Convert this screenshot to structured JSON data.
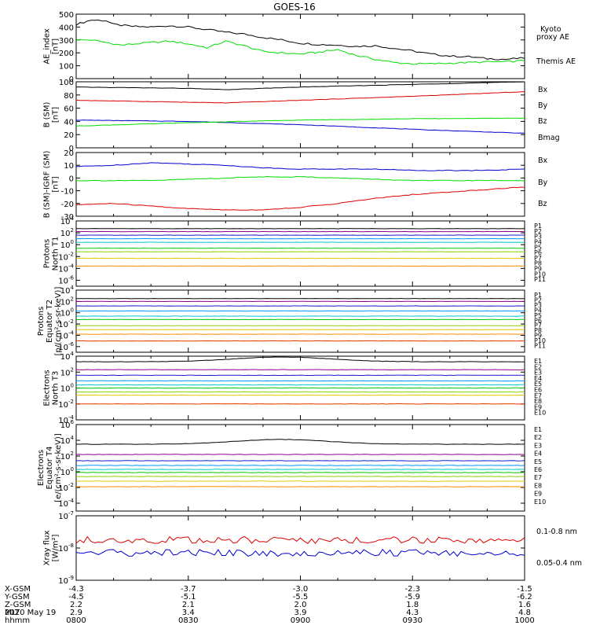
{
  "title": "GOES-16",
  "colors": {
    "black": "#000000",
    "green": "#00dd00",
    "blue": "#0000cc",
    "red": "#dd0000",
    "ch": [
      "#000000",
      "#8b008b",
      "#1a1acd",
      "#0096ff",
      "#00c8c8",
      "#00c800",
      "#8cd200",
      "#e6c800",
      "#ff8c00",
      "#e63200",
      "#c80000"
    ]
  },
  "chart_data": [
    {
      "type": "line",
      "ylabel": "AE_index [nT]",
      "ylim": [
        0,
        500
      ],
      "yticks": [
        "0",
        "100",
        "200",
        "300",
        "400",
        "500"
      ],
      "series": [
        {
          "name": "Themis AE",
          "color": "#000000",
          "x": [
            0,
            4,
            8,
            10,
            15,
            20,
            25,
            30,
            35,
            40,
            45,
            50,
            55,
            60,
            65,
            70,
            75,
            80,
            85,
            90,
            95,
            100,
            105,
            110,
            115,
            120
          ],
          "y": [
            420,
            455,
            450,
            420,
            405,
            400,
            410,
            400,
            380,
            360,
            345,
            320,
            300,
            275,
            265,
            260,
            250,
            255,
            235,
            215,
            190,
            175,
            170,
            155,
            150,
            160
          ]
        },
        {
          "name": "Kyoto proxy AE",
          "color": "#00dd00",
          "x": [
            0,
            4,
            8,
            12,
            16,
            20,
            25,
            30,
            35,
            40,
            45,
            50,
            55,
            60,
            65,
            70,
            75,
            80,
            85,
            90,
            95,
            100,
            105,
            110,
            115,
            120
          ],
          "y": [
            300,
            300,
            280,
            260,
            270,
            280,
            290,
            270,
            240,
            290,
            255,
            210,
            200,
            190,
            205,
            225,
            180,
            150,
            125,
            115,
            115,
            120,
            125,
            130,
            130,
            140
          ]
        }
      ],
      "legend_note": [
        "Kyoto",
        "proxy AE"
      ]
    },
    {
      "type": "line",
      "ylabel": "B (SM) [nT]",
      "ylim": [
        0,
        100
      ],
      "yticks": [
        "0",
        "20",
        "40",
        "60",
        "80",
        "100"
      ],
      "series": [
        {
          "name": "Bx",
          "color": "#0000cc",
          "x": [
            0,
            30,
            60,
            90,
            120
          ],
          "y": [
            42,
            40,
            35,
            28,
            22
          ]
        },
        {
          "name": "By",
          "color": "#00dd00",
          "x": [
            0,
            30,
            60,
            90,
            120
          ],
          "y": [
            33,
            38,
            42,
            44,
            45
          ]
        },
        {
          "name": "Bz",
          "color": "#dd0000",
          "x": [
            0,
            30,
            40,
            60,
            90,
            120
          ],
          "y": [
            72,
            69,
            68,
            72,
            78,
            85
          ]
        },
        {
          "name": "Bmag",
          "color": "#000000",
          "x": [
            0,
            30,
            40,
            60,
            90,
            120
          ],
          "y": [
            92,
            90,
            88,
            92,
            96,
            100
          ]
        }
      ]
    },
    {
      "type": "line",
      "ylabel": "B (SM)-IGRF (SM) [nT]",
      "ylim": [
        -30,
        20
      ],
      "yticks": [
        "-30",
        "-20",
        "-10",
        "0",
        "10",
        "20"
      ],
      "series": [
        {
          "name": "Bx",
          "color": "#0000cc",
          "x": [
            0,
            10,
            20,
            30,
            40,
            50,
            60,
            70,
            80,
            90,
            100,
            110,
            120
          ],
          "y": [
            9,
            10,
            12,
            11,
            10,
            8,
            7,
            7,
            7,
            6,
            6,
            6,
            7
          ]
        },
        {
          "name": "By",
          "color": "#00dd00",
          "x": [
            0,
            20,
            30,
            40,
            50,
            60,
            70,
            80,
            90,
            100,
            110,
            120
          ],
          "y": [
            -2,
            -2,
            -1,
            0,
            1,
            1,
            0,
            -1,
            -2,
            -2,
            -2,
            -2
          ]
        },
        {
          "name": "Bz",
          "color": "#dd0000",
          "x": [
            0,
            10,
            20,
            30,
            40,
            50,
            60,
            70,
            80,
            90,
            100,
            110,
            120
          ],
          "y": [
            -21,
            -20,
            -22,
            -24,
            -25,
            -25,
            -23,
            -20,
            -16,
            -13,
            -11,
            -9,
            -7
          ]
        }
      ]
    },
    {
      "type": "line",
      "log": true,
      "ylabel": [
        "Protons",
        "North T1"
      ],
      "ylim_exp": [
        -7,
        4
      ],
      "tick_exps": [
        -6,
        -4,
        -2,
        0,
        2,
        4
      ],
      "series": [
        {
          "name": "P1",
          "level": 2.7
        },
        {
          "name": "P2",
          "level": 2.2
        },
        {
          "name": "P3",
          "level": 1.6
        },
        {
          "name": "P4",
          "level": 1.0
        },
        {
          "name": "P5",
          "level": 0.4
        },
        {
          "name": "P6",
          "level": -0.6
        },
        {
          "name": "P7",
          "level": -1.2
        },
        {
          "name": "P8",
          "level": -2.3
        },
        {
          "name": "P9",
          "level": -3.6
        },
        {
          "name": "P10",
          "level": null
        },
        {
          "name": "P11",
          "level": null
        }
      ]
    },
    {
      "type": "line",
      "log": true,
      "ylabel": [
        "Protons",
        "Equator T2",
        "[p/(cm²-s-sr-keV)]"
      ],
      "ylim_exp": [
        -7,
        4
      ],
      "tick_exps": [
        -6,
        -4,
        -2,
        0,
        2,
        4
      ],
      "series": [
        {
          "name": "P1",
          "level": 2.5
        },
        {
          "name": "P2",
          "level": 2.0
        },
        {
          "name": "P3",
          "level": 1.2
        },
        {
          "name": "P4",
          "level": 0.3
        },
        {
          "name": "P5",
          "level": -0.6
        },
        {
          "name": "P6",
          "level": -1.2
        },
        {
          "name": "P7",
          "level": -2.3
        },
        {
          "name": "P8",
          "level": -3.0
        },
        {
          "name": "P9",
          "level": -3.8
        },
        {
          "name": "P10",
          "level": -5.0
        },
        {
          "name": "P11",
          "level": null
        }
      ]
    },
    {
      "type": "line",
      "log": true,
      "ylabel": [
        "Electrons",
        "North T3"
      ],
      "ylim_exp": [
        -4,
        4
      ],
      "tick_exps": [
        -4,
        -2,
        0,
        2,
        4
      ],
      "series": [
        {
          "name": "E1",
          "level": 3.3
        },
        {
          "name": "E2",
          "level": 2.3
        },
        {
          "name": "E3",
          "level": 1.6
        },
        {
          "name": "E4",
          "level": 0.9
        },
        {
          "name": "E5",
          "level": 0.4
        },
        {
          "name": "E6",
          "level": 0.0
        },
        {
          "name": "E7",
          "level": -0.5
        },
        {
          "name": "E8",
          "level": -0.9
        },
        {
          "name": "E9",
          "level": null
        },
        {
          "name": "E10",
          "level": -2.0
        }
      ]
    },
    {
      "type": "line",
      "log": true,
      "ylabel": [
        "Electrons",
        "Equator T4",
        "[e/(cm²-s-sr-keV)]"
      ],
      "ylim_exp": [
        -5,
        6
      ],
      "tick_exps": [
        -4,
        -2,
        0,
        2,
        4,
        6
      ],
      "series": [
        {
          "name": "E1",
          "level": 3.5
        },
        {
          "name": "E2",
          "level": 2.2
        },
        {
          "name": "E3",
          "level": 1.4
        },
        {
          "name": "E4",
          "level": 0.8
        },
        {
          "name": "E5",
          "level": 0.3
        },
        {
          "name": "E6",
          "level": -0.1
        },
        {
          "name": "E7",
          "level": -0.6
        },
        {
          "name": "E8",
          "level": -1.2
        },
        {
          "name": "E9",
          "level": -1.9
        },
        {
          "name": "E10",
          "level": null
        }
      ]
    },
    {
      "type": "line",
      "log": true,
      "ylabel": [
        "Xray flux",
        "[W/m²]"
      ],
      "ylim_exp": [
        -9,
        -7
      ],
      "tick_exps": [
        -9,
        -8,
        -7
      ],
      "series": [
        {
          "name": "0.1-0.8 nm",
          "color": "#dd0000",
          "level": -7.75
        },
        {
          "name": "0.05-0.4 nm",
          "color": "#0000cc",
          "level": -8.15
        }
      ]
    }
  ],
  "x_axis": {
    "rows": [
      {
        "label": "X-GSM",
        "values": [
          "-4.3",
          "-3.7",
          "-3.0",
          "-2.3",
          "-1.5"
        ]
      },
      {
        "label": "Y-GSM",
        "values": [
          "-4.5",
          "-5.1",
          "-5.5",
          "-5.9",
          "-6.2"
        ]
      },
      {
        "label": "Z-GSM",
        "values": [
          "2.2",
          "2.1",
          "2.0",
          "1.8",
          "1.6"
        ]
      },
      {
        "label": "MLT",
        "values": [
          "2.9",
          "3.4",
          "3.9",
          "4.3",
          "4.8"
        ]
      },
      {
        "label": "hhmm",
        "values": [
          "0800",
          "0830",
          "0900",
          "0930",
          "1000"
        ]
      }
    ],
    "date": "2020 May 19"
  }
}
